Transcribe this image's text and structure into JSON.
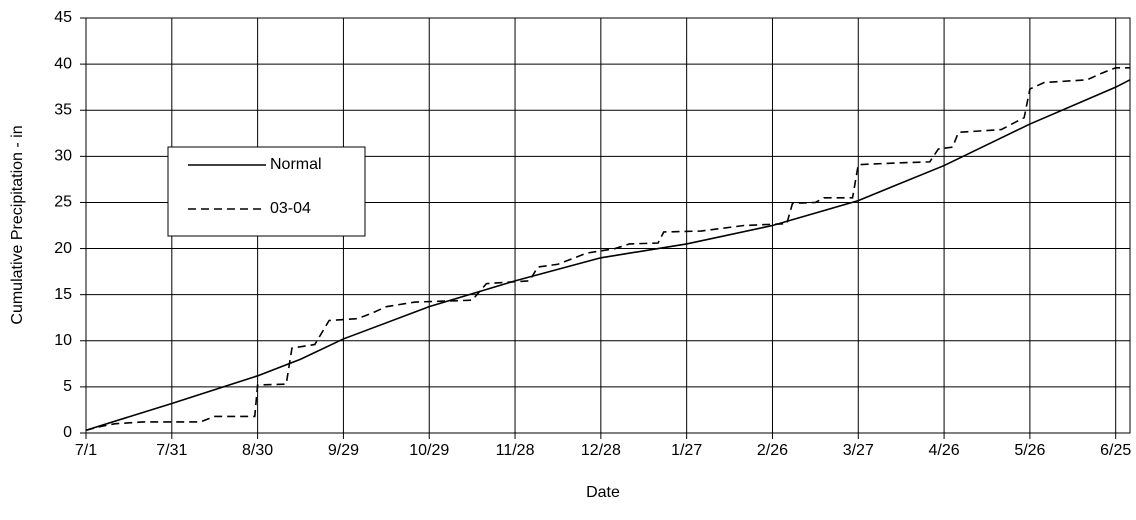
{
  "chart_data": {
    "type": "line",
    "x_label": "Date",
    "y_label": "Cumulative Precipitation - in",
    "xlim": [
      0,
      365
    ],
    "ylim": [
      0,
      45
    ],
    "xticks": [
      {
        "value": 0,
        "label": "7/1"
      },
      {
        "value": 30,
        "label": "7/31"
      },
      {
        "value": 60,
        "label": "8/30"
      },
      {
        "value": 90,
        "label": "9/29"
      },
      {
        "value": 120,
        "label": "10/29"
      },
      {
        "value": 150,
        "label": "11/28"
      },
      {
        "value": 180,
        "label": "12/28"
      },
      {
        "value": 210,
        "label": "1/27"
      },
      {
        "value": 240,
        "label": "2/26"
      },
      {
        "value": 270,
        "label": "3/27"
      },
      {
        "value": 300,
        "label": "4/26"
      },
      {
        "value": 330,
        "label": "5/26"
      },
      {
        "value": 360,
        "label": "6/25"
      }
    ],
    "yticks": [
      0,
      5,
      10,
      15,
      20,
      25,
      30,
      35,
      40,
      45
    ],
    "grid": true,
    "series": [
      {
        "name": "Normal",
        "color": "#000000",
        "line_style": "solid",
        "x": [
          0,
          30,
          60,
          75,
          90,
          120,
          150,
          180,
          210,
          240,
          270,
          300,
          330,
          360,
          365
        ],
        "values": [
          0.3,
          3.2,
          6.2,
          8,
          10.2,
          13.7,
          16.5,
          19,
          20.5,
          22.5,
          25.2,
          29,
          33.5,
          37.5,
          38.3
        ]
      },
      {
        "name": "03-04",
        "color": "#000000",
        "line_style": "dashed",
        "x": [
          0,
          5,
          10,
          20,
          40,
          45,
          59,
          60,
          70,
          72,
          80,
          85,
          95,
          100,
          105,
          115,
          135,
          140,
          155,
          158,
          165,
          175,
          185,
          190,
          200,
          202,
          215,
          230,
          245,
          247,
          255,
          258,
          268,
          270,
          285,
          295,
          298,
          303,
          305,
          320,
          328,
          330,
          335,
          350,
          355,
          360,
          365
        ],
        "values": [
          0.3,
          0.7,
          1.0,
          1.2,
          1.2,
          1.8,
          1.8,
          5.2,
          5.3,
          9.2,
          9.6,
          12.2,
          12.4,
          13.0,
          13.7,
          14.2,
          14.4,
          16.2,
          16.5,
          18.0,
          18.3,
          19.5,
          20.0,
          20.5,
          20.6,
          21.8,
          21.9,
          22.5,
          22.7,
          24.9,
          25.0,
          25.5,
          25.5,
          29.1,
          29.3,
          29.4,
          30.8,
          31.0,
          32.6,
          32.9,
          34.2,
          37.3,
          38.0,
          38.3,
          39.0,
          39.6,
          39.6
        ]
      }
    ]
  }
}
